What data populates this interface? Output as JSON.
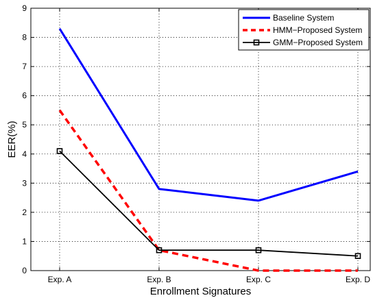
{
  "chart_data": {
    "type": "line",
    "title": "",
    "xlabel": "Enrollment Signatures",
    "ylabel": "EER(%)",
    "categories": [
      "Exp. A",
      "Exp. B",
      "Exp. C",
      "Exp. D"
    ],
    "ylim": [
      0,
      9
    ],
    "yticks": [
      "0",
      "1",
      "2",
      "3",
      "4",
      "5",
      "6",
      "7",
      "8",
      "9"
    ],
    "grid": "dotted",
    "legend_position": "top-right",
    "series": [
      {
        "name": "Baseline System",
        "values": [
          8.3,
          2.8,
          2.4,
          3.4
        ],
        "color": "#0000ff",
        "style": "solid",
        "marker": "none"
      },
      {
        "name": "HMM−Proposed System",
        "values": [
          5.5,
          0.7,
          0.0,
          0.0
        ],
        "color": "#ff0000",
        "style": "dashed",
        "marker": "none"
      },
      {
        "name": "GMM−Proposed System",
        "values": [
          4.1,
          0.7,
          0.7,
          0.5
        ],
        "color": "#000000",
        "style": "solid",
        "marker": "square"
      }
    ]
  }
}
